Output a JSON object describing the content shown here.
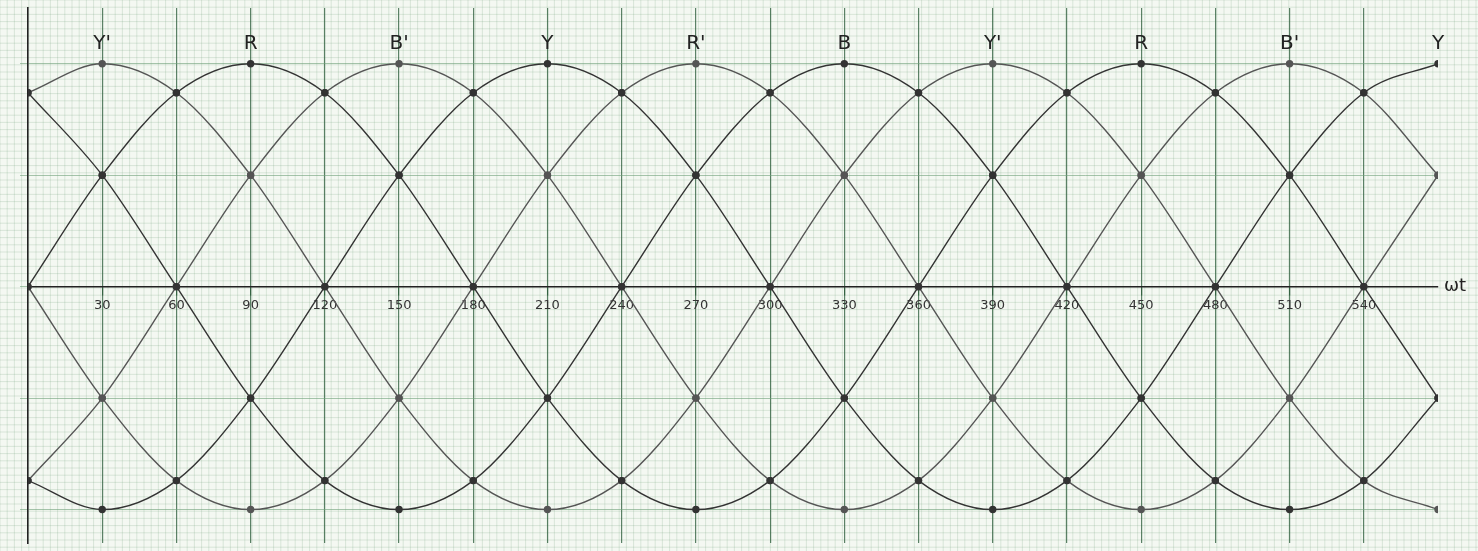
{
  "chart_data": {
    "type": "line",
    "x_label": "ωt",
    "x": [
      0,
      30,
      60,
      90,
      120,
      150,
      180,
      210,
      240,
      270,
      300,
      330,
      360,
      390,
      420,
      450,
      480,
      510,
      540,
      570
    ],
    "xlim": [
      0,
      570
    ],
    "xticks": [
      30,
      60,
      90,
      120,
      150,
      180,
      210,
      240,
      270,
      300,
      330,
      360,
      390,
      420,
      450,
      480,
      510,
      540
    ],
    "ylim": [
      -1.15,
      1.25
    ],
    "yticks": [
      -1,
      -0.5,
      0,
      0.5,
      1
    ],
    "grid": true,
    "tick_labels": "x",
    "marker": "circle",
    "series": [
      {
        "name": "R",
        "color": "#333333",
        "values": [
          0,
          0.5,
          0.87,
          1,
          0.87,
          0.5,
          0,
          -0.5,
          -0.87,
          -1,
          -0.87,
          -0.5,
          0,
          0.5,
          0.87,
          1,
          0.87,
          0.5,
          0,
          -0.5
        ]
      },
      {
        "name": "Y",
        "color": "#333333",
        "values": [
          -0.87,
          -1,
          -0.87,
          -0.5,
          0,
          0.5,
          0.87,
          1,
          0.87,
          0.5,
          0,
          -0.5,
          -0.87,
          -1,
          -0.87,
          -0.5,
          0,
          0.5,
          0.87,
          1
        ]
      },
      {
        "name": "B",
        "color": "#333333",
        "values": [
          0.87,
          0.5,
          0,
          -0.5,
          -0.87,
          -1,
          -0.87,
          -0.5,
          0,
          0.5,
          0.87,
          1,
          0.87,
          0.5,
          0,
          -0.5,
          -0.87,
          -1,
          -0.87,
          -0.5
        ]
      },
      {
        "name": "R'",
        "color": "#555555",
        "values": [
          0,
          -0.5,
          -0.87,
          -1,
          -0.87,
          -0.5,
          0,
          0.5,
          0.87,
          1,
          0.87,
          0.5,
          0,
          -0.5,
          -0.87,
          -1,
          -0.87,
          -0.5,
          0,
          0.5
        ]
      },
      {
        "name": "Y'",
        "color": "#555555",
        "values": [
          0.87,
          1,
          0.87,
          0.5,
          0,
          -0.5,
          -0.87,
          -1,
          -0.87,
          -0.5,
          0,
          0.5,
          0.87,
          1,
          0.87,
          0.5,
          0,
          -0.5,
          -0.87,
          -1
        ]
      },
      {
        "name": "B'",
        "color": "#555555",
        "values": [
          -0.87,
          -0.5,
          0,
          0.5,
          0.87,
          1,
          0.87,
          0.5,
          0,
          -0.5,
          -0.87,
          -1,
          -0.87,
          -0.5,
          0,
          0.5,
          0.87,
          1,
          0.87,
          0.5
        ]
      }
    ],
    "annotations": [
      {
        "text": "Y'",
        "x": 30,
        "y": 1
      },
      {
        "text": "R",
        "x": 90,
        "y": 1
      },
      {
        "text": "B'",
        "x": 150,
        "y": 1
      },
      {
        "text": "Y",
        "x": 210,
        "y": 1
      },
      {
        "text": "R'",
        "x": 270,
        "y": 1
      },
      {
        "text": "B",
        "x": 330,
        "y": 1
      },
      {
        "text": "Y'",
        "x": 390,
        "y": 1
      },
      {
        "text": "R",
        "x": 450,
        "y": 1
      },
      {
        "text": "B'",
        "x": 510,
        "y": 1
      },
      {
        "text": "Y",
        "x": 570,
        "y": 1
      }
    ]
  }
}
